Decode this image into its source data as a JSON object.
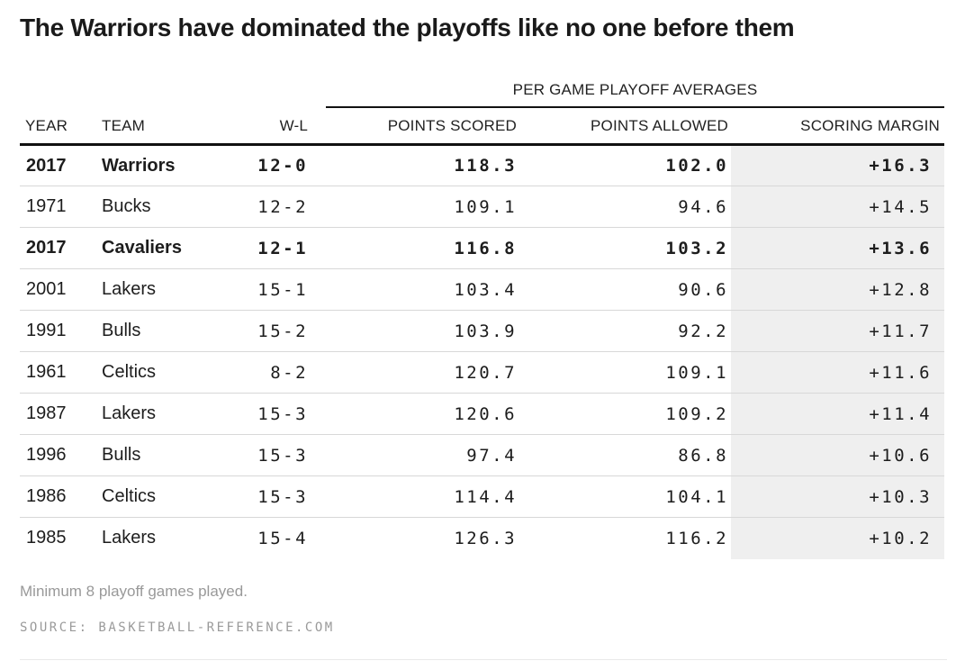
{
  "title": "The Warriors have dominated the playoffs like no one before them",
  "chart_data": {
    "type": "table",
    "title": "The Warriors have dominated the playoffs like no one before them",
    "group_header": "PER GAME PLAYOFF AVERAGES",
    "group_header_spans_columns": [
      "POINTS SCORED",
      "POINTS ALLOWED",
      "SCORING MARGIN"
    ],
    "columns": [
      "YEAR",
      "TEAM",
      "W-L",
      "POINTS SCORED",
      "POINTS ALLOWED",
      "SCORING MARGIN"
    ],
    "rows": [
      {
        "year": "2017",
        "team": "Warriors",
        "w_l": "12-0",
        "points_scored": "118.3",
        "points_allowed": "102.0",
        "scoring_margin": "+16.3",
        "bold": true
      },
      {
        "year": "1971",
        "team": "Bucks",
        "w_l": "12-2",
        "points_scored": "109.1",
        "points_allowed": "94.6",
        "scoring_margin": "+14.5",
        "bold": false
      },
      {
        "year": "2017",
        "team": "Cavaliers",
        "w_l": "12-1",
        "points_scored": "116.8",
        "points_allowed": "103.2",
        "scoring_margin": "+13.6",
        "bold": true
      },
      {
        "year": "2001",
        "team": "Lakers",
        "w_l": "15-1",
        "points_scored": "103.4",
        "points_allowed": "90.6",
        "scoring_margin": "+12.8",
        "bold": false
      },
      {
        "year": "1991",
        "team": "Bulls",
        "w_l": "15-2",
        "points_scored": "103.9",
        "points_allowed": "92.2",
        "scoring_margin": "+11.7",
        "bold": false
      },
      {
        "year": "1961",
        "team": "Celtics",
        "w_l": "8-2",
        "points_scored": "120.7",
        "points_allowed": "109.1",
        "scoring_margin": "+11.6",
        "bold": false
      },
      {
        "year": "1987",
        "team": "Lakers",
        "w_l": "15-3",
        "points_scored": "120.6",
        "points_allowed": "109.2",
        "scoring_margin": "+11.4",
        "bold": false
      },
      {
        "year": "1996",
        "team": "Bulls",
        "w_l": "15-3",
        "points_scored": "97.4",
        "points_allowed": "86.8",
        "scoring_margin": "+10.6",
        "bold": false
      },
      {
        "year": "1986",
        "team": "Celtics",
        "w_l": "15-3",
        "points_scored": "114.4",
        "points_allowed": "104.1",
        "scoring_margin": "+10.3",
        "bold": false
      },
      {
        "year": "1985",
        "team": "Lakers",
        "w_l": "15-4",
        "points_scored": "126.3",
        "points_allowed": "116.2",
        "scoring_margin": "+10.2",
        "bold": false
      }
    ],
    "footnote": "Minimum 8 playoff games played.",
    "source": "SOURCE: BASKETBALL-REFERENCE.COM"
  },
  "colors": {
    "title_text": "#1a1a1a",
    "body_text": "#1d1d1d",
    "header_rule": "#111111",
    "row_divider": "#d8d8d8",
    "margin_column_band": "#efefef",
    "muted_text": "#999999",
    "bottom_divider": "#e9e9e9"
  }
}
